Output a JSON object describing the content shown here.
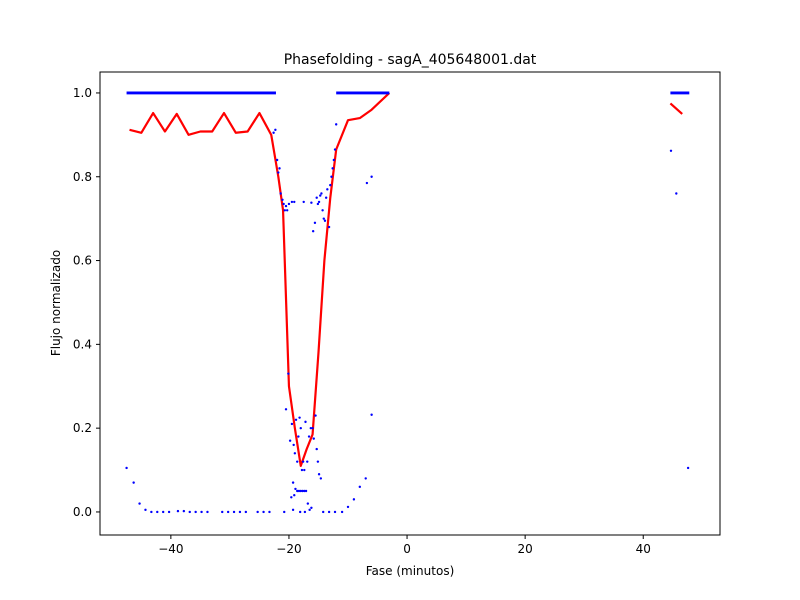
{
  "chart_data": {
    "type": "scatter",
    "title": "Phasefolding - sagA_405648001.dat",
    "xlabel": "Fase (minutos)",
    "ylabel": "Flujo normalizado",
    "xlim": [
      -52,
      53
    ],
    "ylim": [
      -0.055,
      1.05
    ],
    "x_ticks": [
      -40,
      -20,
      0,
      20,
      40
    ],
    "y_ticks": [
      0.0,
      0.2,
      0.4,
      0.6,
      0.8,
      1.0
    ],
    "x_tick_labels": [
      "−40",
      "−20",
      "0",
      "20",
      "40"
    ],
    "y_tick_labels": [
      "0.0",
      "0.2",
      "0.4",
      "0.6",
      "0.8",
      "1.0"
    ],
    "grid": false,
    "colors": {
      "points": "#0000ff",
      "smoothed": "#ff0000"
    },
    "points": [
      [
        -47.5,
        0.105
      ],
      [
        -46.3,
        0.07
      ],
      [
        -45.3,
        0.02
      ],
      [
        -44.3,
        0.005
      ],
      [
        -43.3,
        0.0
      ],
      [
        -42.3,
        0.0
      ],
      [
        -41.3,
        0.0
      ],
      [
        -40.3,
        0.0
      ],
      [
        -38.8,
        0.002
      ],
      [
        -37.8,
        0.002
      ],
      [
        -36.8,
        0.0
      ],
      [
        -35.8,
        0.0
      ],
      [
        -34.8,
        0.0
      ],
      [
        -33.8,
        0.0
      ],
      [
        -31.3,
        0.0
      ],
      [
        -30.3,
        0.0
      ],
      [
        -29.3,
        0.0
      ],
      [
        -28.3,
        0.0
      ],
      [
        -27.3,
        0.0
      ],
      [
        -25.3,
        0.0
      ],
      [
        -24.3,
        0.0
      ],
      [
        -23.3,
        0.0
      ],
      [
        -20.8,
        0.0
      ],
      [
        -19.3,
        0.005
      ],
      [
        -22.6,
        0.905
      ],
      [
        -22.3,
        0.912
      ],
      [
        -22.0,
        0.84
      ],
      [
        -21.8,
        0.81
      ],
      [
        -21.6,
        0.82
      ],
      [
        -21.4,
        0.76
      ],
      [
        -21.1,
        0.745
      ],
      [
        -20.9,
        0.735
      ],
      [
        -20.7,
        0.72
      ],
      [
        -20.5,
        0.73
      ],
      [
        -20.3,
        0.72
      ],
      [
        -20.0,
        0.735
      ],
      [
        -19.5,
        0.74
      ],
      [
        -19.1,
        0.74
      ],
      [
        -17.5,
        0.74
      ],
      [
        -16.2,
        0.738
      ],
      [
        -15.9,
        0.67
      ],
      [
        -15.6,
        0.69
      ],
      [
        -15.3,
        0.75
      ],
      [
        -15.1,
        0.735
      ],
      [
        -14.9,
        0.74
      ],
      [
        -14.7,
        0.755
      ],
      [
        -14.5,
        0.76
      ],
      [
        -14.3,
        0.72
      ],
      [
        -14.1,
        0.7
      ],
      [
        -13.9,
        0.695
      ],
      [
        -13.7,
        0.75
      ],
      [
        -13.5,
        0.77
      ],
      [
        -13.2,
        0.68
      ],
      [
        -13.0,
        0.78
      ],
      [
        -12.8,
        0.8
      ],
      [
        -12.6,
        0.82
      ],
      [
        -12.4,
        0.84
      ],
      [
        -12.2,
        0.865
      ],
      [
        -12.0,
        0.925
      ],
      [
        -6.8,
        0.785
      ],
      [
        -6.0,
        0.8
      ],
      [
        -20.5,
        0.245
      ],
      [
        -20.1,
        0.33
      ],
      [
        -19.8,
        0.17
      ],
      [
        -19.5,
        0.21
      ],
      [
        -19.2,
        0.16
      ],
      [
        -19.0,
        0.14
      ],
      [
        -18.8,
        0.22
      ],
      [
        -18.6,
        0.12
      ],
      [
        -18.4,
        0.18
      ],
      [
        -18.2,
        0.225
      ],
      [
        -18.0,
        0.2
      ],
      [
        -17.8,
        0.1
      ],
      [
        -17.6,
        0.12
      ],
      [
        -17.4,
        0.1
      ],
      [
        -17.2,
        0.215
      ],
      [
        -16.9,
        0.12
      ],
      [
        -16.6,
        0.18
      ],
      [
        -16.3,
        0.2
      ],
      [
        -16.0,
        0.2
      ],
      [
        -15.8,
        0.175
      ],
      [
        -15.5,
        0.23
      ],
      [
        -15.3,
        0.15
      ],
      [
        -15.1,
        0.12
      ],
      [
        -14.9,
        0.09
      ],
      [
        -14.6,
        0.08
      ],
      [
        -19.6,
        0.035
      ],
      [
        -19.3,
        0.07
      ],
      [
        -19.1,
        0.04
      ],
      [
        -18.9,
        0.055
      ],
      [
        -18.6,
        0.05
      ],
      [
        -18.3,
        0.05
      ],
      [
        -18.0,
        0.05
      ],
      [
        -17.7,
        0.05
      ],
      [
        -17.4,
        0.05
      ],
      [
        -17.1,
        0.05
      ],
      [
        -16.8,
        0.02
      ],
      [
        -16.5,
        0.005
      ],
      [
        -16.2,
        0.01
      ],
      [
        -18.1,
        0.0
      ],
      [
        -17.3,
        0.0
      ],
      [
        -14.2,
        0.0
      ],
      [
        -13.2,
        0.0
      ],
      [
        -12.2,
        0.0
      ],
      [
        -11.0,
        0.0
      ],
      [
        -10.0,
        0.012
      ],
      [
        -9.0,
        0.03
      ],
      [
        -8.0,
        0.06
      ],
      [
        -7.0,
        0.08
      ],
      [
        -6.0,
        0.232
      ],
      [
        44.7,
        0.862
      ],
      [
        45.6,
        0.76
      ],
      [
        47.6,
        0.105
      ]
    ],
    "unity_segments": [
      {
        "x": [
          -47.5,
          -22.2
        ],
        "y": 1.0
      },
      {
        "x": [
          -12.0,
          -3.0
        ],
        "y": 1.0
      },
      {
        "x": [
          44.6,
          47.8
        ],
        "y": 1.0
      }
    ],
    "smoothed_segments": [
      {
        "x": [
          -47.0,
          -45.0,
          -43.0,
          -41.0,
          -39.0,
          -37.0,
          -35.0,
          -33.0,
          -31.0,
          -29.0,
          -27.0,
          -25.0,
          -23.0,
          -21.8,
          -21.0,
          -20.0,
          -19.0,
          -18.0,
          -17.0,
          -16.0,
          -15.0,
          -14.0,
          -13.0,
          -12.0,
          -10.0,
          -8.0,
          -6.0,
          -3.0
        ],
        "y": [
          0.912,
          0.905,
          0.952,
          0.908,
          0.95,
          0.9,
          0.908,
          0.908,
          0.952,
          0.905,
          0.908,
          0.952,
          0.9,
          0.8,
          0.72,
          0.3,
          0.2,
          0.11,
          0.15,
          0.185,
          0.38,
          0.6,
          0.75,
          0.865,
          0.935,
          0.94,
          0.96,
          1.0
        ]
      },
      {
        "x": [
          44.6,
          46.6
        ],
        "y": [
          0.975,
          0.95
        ]
      }
    ]
  }
}
